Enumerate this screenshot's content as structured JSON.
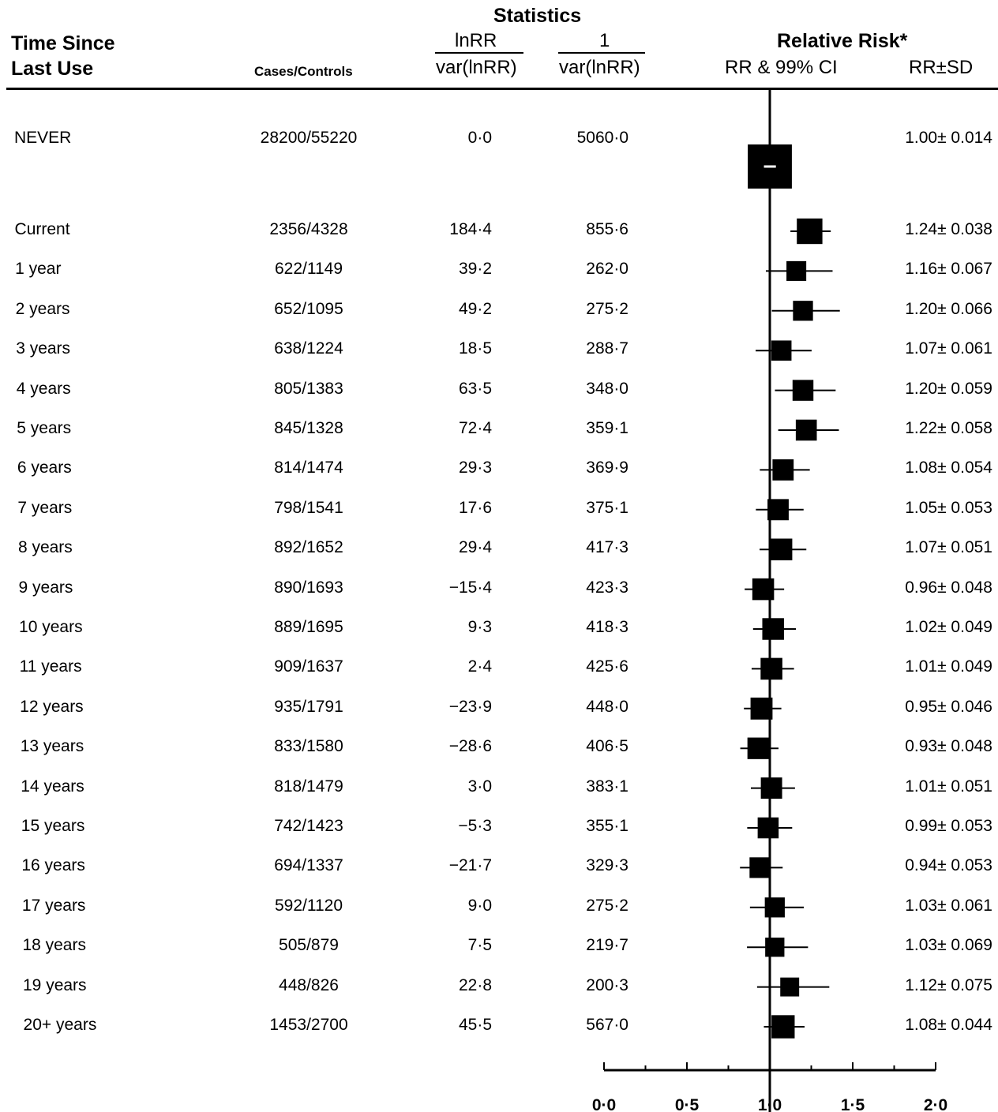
{
  "header": {
    "statistics": "Statistics",
    "time_since_line1": "Time Since",
    "time_since_line2": "Last Use",
    "cases_controls": "Cases/Controls",
    "lnrr_top": "lnRR",
    "lnrr_bottom": "var(lnRR)",
    "inv_top": "1",
    "inv_bottom": "var(lnRR)",
    "relative_risk": "Relative Risk*",
    "rr_ci": "RR & 99% CI",
    "rr_sd": "RR±SD"
  },
  "chart_data": {
    "type": "forest",
    "xlim": [
      0.0,
      2.0
    ],
    "reference_line": 1.0,
    "ticks": [
      "0·0",
      "0·5",
      "1·0",
      "1·5",
      "2·0"
    ],
    "tick_values": [
      0.0,
      0.5,
      1.0,
      1.5,
      2.0
    ],
    "columns": [
      "Time Since Last Use",
      "Cases/Controls",
      "lnRR / var(lnRR)",
      "1 / var(lnRR)",
      "RR & 99% CI",
      "RR±SD"
    ],
    "rows": [
      {
        "label": "NEVER",
        "cases_controls": "28200/55220",
        "stat1": "0·0",
        "stat2": "5060·0",
        "rr": 1.0,
        "sd": 0.014,
        "rrsd": "1.00± 0.014"
      },
      {
        "label": "Current",
        "cases_controls": "2356/4328",
        "stat1": "184·4",
        "stat2": "855·6",
        "rr": 1.24,
        "sd": 0.038,
        "rrsd": "1.24± 0.038"
      },
      {
        "label": "1 year",
        "cases_controls": "622/1149",
        "stat1": "39·2",
        "stat2": "262·0",
        "rr": 1.16,
        "sd": 0.067,
        "rrsd": "1.16± 0.067"
      },
      {
        "label": "2 years",
        "cases_controls": "652/1095",
        "stat1": "49·2",
        "stat2": "275·2",
        "rr": 1.2,
        "sd": 0.066,
        "rrsd": "1.20± 0.066"
      },
      {
        "label": "3 years",
        "cases_controls": "638/1224",
        "stat1": "18·5",
        "stat2": "288·7",
        "rr": 1.07,
        "sd": 0.061,
        "rrsd": "1.07± 0.061"
      },
      {
        "label": "4 years",
        "cases_controls": "805/1383",
        "stat1": "63·5",
        "stat2": "348·0",
        "rr": 1.2,
        "sd": 0.059,
        "rrsd": "1.20± 0.059"
      },
      {
        "label": "5 years",
        "cases_controls": "845/1328",
        "stat1": "72·4",
        "stat2": "359·1",
        "rr": 1.22,
        "sd": 0.058,
        "rrsd": "1.22± 0.058"
      },
      {
        "label": "6 years",
        "cases_controls": "814/1474",
        "stat1": "29·3",
        "stat2": "369·9",
        "rr": 1.08,
        "sd": 0.054,
        "rrsd": "1.08± 0.054"
      },
      {
        "label": "7 years",
        "cases_controls": "798/1541",
        "stat1": "17·6",
        "stat2": "375·1",
        "rr": 1.05,
        "sd": 0.053,
        "rrsd": "1.05± 0.053"
      },
      {
        "label": "8 years",
        "cases_controls": "892/1652",
        "stat1": "29·4",
        "stat2": "417·3",
        "rr": 1.07,
        "sd": 0.051,
        "rrsd": "1.07± 0.051"
      },
      {
        "label": "9 years",
        "cases_controls": "890/1693",
        "stat1": "−15·4",
        "stat2": "423·3",
        "rr": 0.96,
        "sd": 0.048,
        "rrsd": "0.96± 0.048"
      },
      {
        "label": "10 years",
        "cases_controls": "889/1695",
        "stat1": "9·3",
        "stat2": "418·3",
        "rr": 1.02,
        "sd": 0.049,
        "rrsd": "1.02± 0.049"
      },
      {
        "label": "11 years",
        "cases_controls": "909/1637",
        "stat1": "2·4",
        "stat2": "425·6",
        "rr": 1.01,
        "sd": 0.049,
        "rrsd": "1.01± 0.049"
      },
      {
        "label": "12 years",
        "cases_controls": "935/1791",
        "stat1": "−23·9",
        "stat2": "448·0",
        "rr": 0.95,
        "sd": 0.046,
        "rrsd": "0.95± 0.046"
      },
      {
        "label": "13 years",
        "cases_controls": "833/1580",
        "stat1": "−28·6",
        "stat2": "406·5",
        "rr": 0.93,
        "sd": 0.048,
        "rrsd": "0.93± 0.048"
      },
      {
        "label": "14 years",
        "cases_controls": "818/1479",
        "stat1": "3·0",
        "stat2": "383·1",
        "rr": 1.01,
        "sd": 0.051,
        "rrsd": "1.01± 0.051"
      },
      {
        "label": "15 years",
        "cases_controls": "742/1423",
        "stat1": "−5·3",
        "stat2": "355·1",
        "rr": 0.99,
        "sd": 0.053,
        "rrsd": "0.99± 0.053"
      },
      {
        "label": "16 years",
        "cases_controls": "694/1337",
        "stat1": "−21·7",
        "stat2": "329·3",
        "rr": 0.94,
        "sd": 0.053,
        "rrsd": "0.94± 0.053"
      },
      {
        "label": "17 years",
        "cases_controls": "592/1120",
        "stat1": "9·0",
        "stat2": "275·2",
        "rr": 1.03,
        "sd": 0.061,
        "rrsd": "1.03± 0.061"
      },
      {
        "label": "18 years",
        "cases_controls": "505/879",
        "stat1": "7·5",
        "stat2": "219·7",
        "rr": 1.03,
        "sd": 0.069,
        "rrsd": "1.03± 0.069"
      },
      {
        "label": "19 years",
        "cases_controls": "448/826",
        "stat1": "22·8",
        "stat2": "200·3",
        "rr": 1.12,
        "sd": 0.075,
        "rrsd": "1.12± 0.075"
      },
      {
        "label": "20+ years",
        "cases_controls": "1453/2700",
        "stat1": "45·5",
        "stat2": "567·0",
        "rr": 1.08,
        "sd": 0.044,
        "rrsd": "1.08± 0.044"
      }
    ]
  }
}
